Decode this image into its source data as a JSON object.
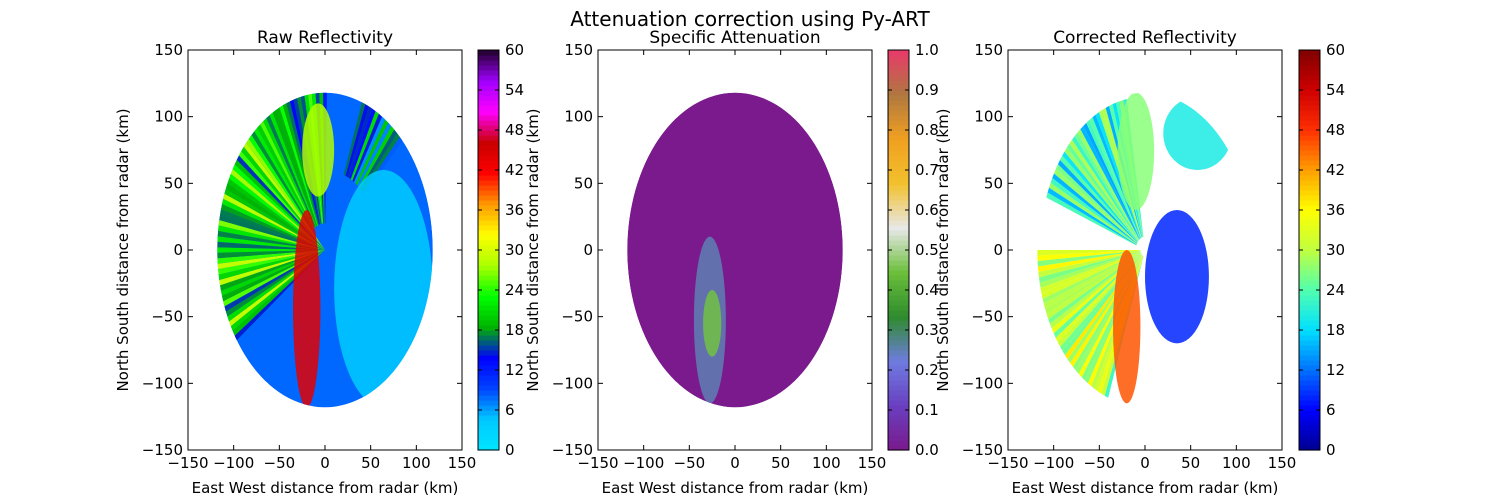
{
  "figure": {
    "suptitle": "Attenuation correction using Py-ART"
  },
  "chart_data": [
    {
      "type": "heatmap",
      "title": "Raw Reflectivity",
      "xlabel": "East West distance from radar (km)",
      "ylabel": "North South distance from radar (km)",
      "xlim": [
        -150,
        150
      ],
      "ylim": [
        -150,
        150
      ],
      "xticks": [
        -150,
        -100,
        -50,
        0,
        50,
        100,
        150
      ],
      "yticks": [
        -150,
        -100,
        -50,
        0,
        50,
        100,
        150
      ],
      "radar_range_km": 118,
      "grid": false,
      "colorbar": {
        "min": 0,
        "max": 60,
        "ticks": [
          0,
          6,
          12,
          18,
          24,
          30,
          36,
          42,
          48,
          54,
          60
        ],
        "colormap": [
          "#00e5ff",
          "#00c8ff",
          "#0044ff",
          "#0000ff",
          "#00b400",
          "#00ff00",
          "#aaff00",
          "#ffff00",
          "#ff9900",
          "#ff0000",
          "#c80000",
          "#ff00ff",
          "#a000ff",
          "#20002a"
        ]
      },
      "features": [
        {
          "region": "background",
          "range_km": [
            0,
            118
          ],
          "value": 8
        },
        {
          "region": "west sector",
          "azimuth_deg": [
            235,
            315
          ],
          "range_km": [
            0,
            118
          ],
          "value": 22
        },
        {
          "region": "north-west sector",
          "azimuth_deg": [
            315,
            360
          ],
          "range_km": [
            20,
            118
          ],
          "value": 18
        },
        {
          "region": "north-east cluster",
          "azimuth_deg": [
            20,
            45
          ],
          "range_km": [
            60,
            118
          ],
          "value": 14
        },
        {
          "region": "convective line",
          "x_km": [
            -35,
            -5
          ],
          "y_km": [
            -118,
            30
          ],
          "value": 44
        },
        {
          "region": "northern band",
          "x_km": [
            -25,
            10
          ],
          "y_km": [
            40,
            110
          ],
          "value": 28
        },
        {
          "region": "eastern half",
          "x_km": [
            10,
            118
          ],
          "y_km": [
            -118,
            60
          ],
          "value": 4
        }
      ]
    },
    {
      "type": "heatmap",
      "title": "Specific Attenuation",
      "xlabel": "East West distance from radar (km)",
      "ylabel": "North South distance from radar (km)",
      "xlim": [
        -150,
        150
      ],
      "ylim": [
        -150,
        150
      ],
      "xticks": [
        -150,
        -100,
        -50,
        0,
        50,
        100,
        150
      ],
      "yticks": [
        -150,
        -100,
        -50,
        0,
        50,
        100,
        150
      ],
      "radar_range_km": 118,
      "grid": false,
      "colorbar": {
        "min": 0.0,
        "max": 1.0,
        "ticks": [
          0.0,
          0.1,
          0.2,
          0.3,
          0.4,
          0.5,
          0.6,
          0.7,
          0.8,
          0.9,
          1.0
        ],
        "colormap": [
          "#7a1a8c",
          "#6a3fc0",
          "#6f7ce0",
          "#2e8b2e",
          "#6bbf3a",
          "#e8e8e8",
          "#f2c12e",
          "#f0a020",
          "#b07840",
          "#e83a6a"
        ]
      },
      "features": [
        {
          "region": "background",
          "range_km": [
            0,
            118
          ],
          "value": 0.0
        },
        {
          "region": "convective line",
          "x_km": [
            -45,
            -10
          ],
          "y_km": [
            -115,
            10
          ],
          "value": 0.25
        },
        {
          "region": "line cores",
          "x_km": [
            -35,
            -15
          ],
          "y_km": [
            -80,
            -30
          ],
          "value": 0.45
        }
      ]
    },
    {
      "type": "heatmap",
      "title": "Corrected Reflectivity",
      "xlabel": "East West distance from radar (km)",
      "ylabel": "North South distance from radar (km)",
      "xlim": [
        -150,
        150
      ],
      "ylim": [
        -150,
        150
      ],
      "xticks": [
        -150,
        -100,
        -50,
        0,
        50,
        100,
        150
      ],
      "yticks": [
        -150,
        -100,
        -50,
        0,
        50,
        100,
        150
      ],
      "radar_range_km": 118,
      "grid": false,
      "colorbar": {
        "min": 0,
        "max": 60,
        "ticks": [
          0,
          6,
          12,
          18,
          24,
          30,
          36,
          42,
          48,
          54,
          60
        ],
        "colormap": [
          "#00008f",
          "#0000ff",
          "#0070ff",
          "#00dfff",
          "#50ffaf",
          "#bfff40",
          "#ffff00",
          "#ff9f00",
          "#ff3000",
          "#cf0000",
          "#800000"
        ]
      },
      "features": [
        {
          "region": "south-west sector",
          "azimuth_deg": [
            200,
            270
          ],
          "range_km": [
            5,
            118
          ],
          "value": 30
        },
        {
          "region": "north-west rays",
          "azimuth_deg": [
            290,
            350
          ],
          "range_km": [
            10,
            115
          ],
          "value": 22
        },
        {
          "region": "northern band",
          "x_km": [
            -30,
            10
          ],
          "y_km": [
            30,
            118
          ],
          "value": 27
        },
        {
          "region": "north-east patch",
          "x_km": [
            20,
            95
          ],
          "y_km": [
            60,
            115
          ],
          "value": 20
        },
        {
          "region": "convective line",
          "x_km": [
            -35,
            -5
          ],
          "y_km": [
            -115,
            0
          ],
          "value": 46
        },
        {
          "region": "east scattered echoes",
          "x_km": [
            0,
            70
          ],
          "y_km": [
            -70,
            30
          ],
          "value": 8
        }
      ]
    }
  ]
}
